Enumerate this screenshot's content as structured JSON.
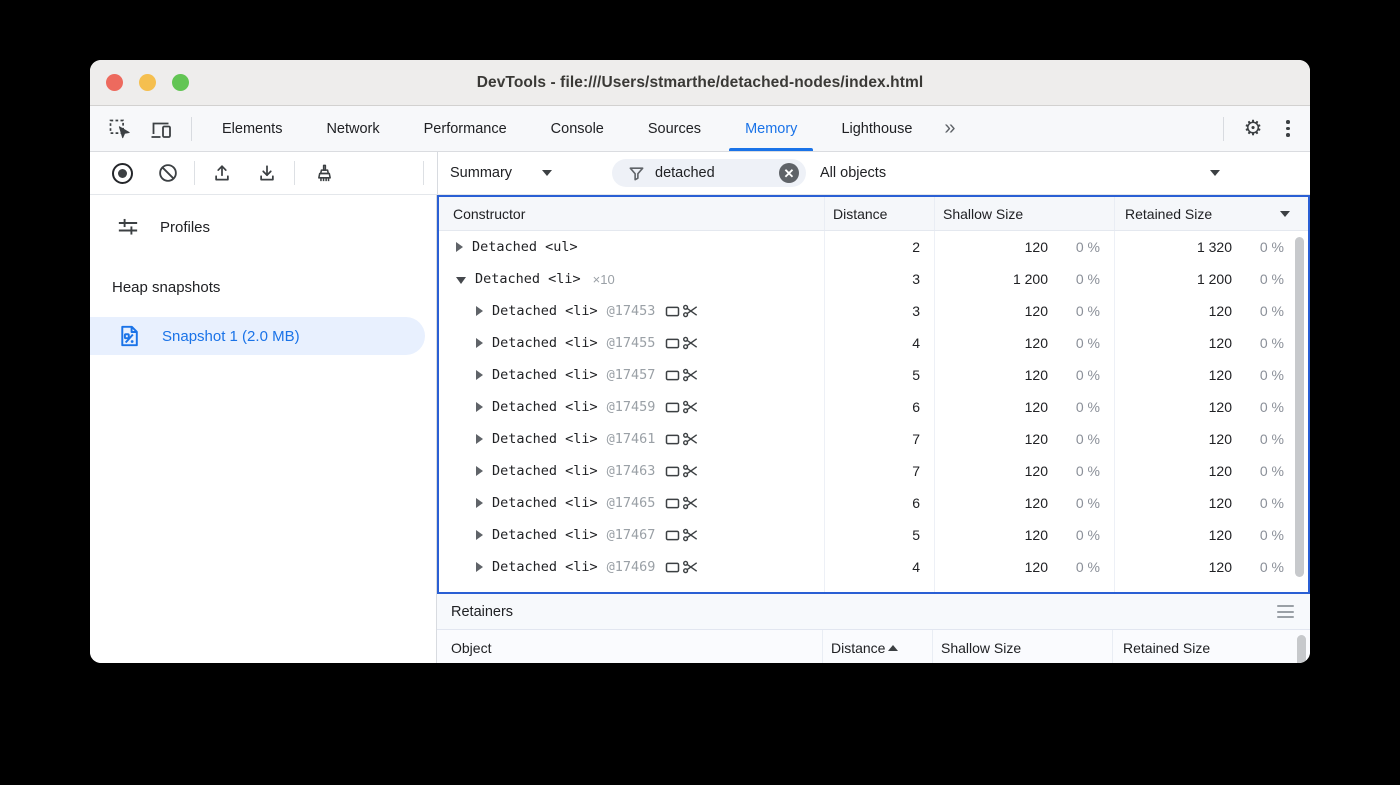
{
  "window": {
    "title": "DevTools - file:///Users/stmarthe/detached-nodes/index.html"
  },
  "tabs": {
    "items": [
      {
        "label": "Elements",
        "active": false
      },
      {
        "label": "Network",
        "active": false
      },
      {
        "label": "Performance",
        "active": false
      },
      {
        "label": "Console",
        "active": false
      },
      {
        "label": "Sources",
        "active": false
      },
      {
        "label": "Memory",
        "active": true
      },
      {
        "label": "Lighthouse",
        "active": false
      }
    ],
    "overflow_label": "»"
  },
  "toolbar": {
    "summary_label": "Summary",
    "filter_value": "detached",
    "clear_label": "✕",
    "object_filter_label": "All objects"
  },
  "sidebar": {
    "profiles_label": "Profiles",
    "heap_heading": "Heap snapshots",
    "snapshot_label": "Snapshot 1 (2.0 MB)"
  },
  "grid": {
    "columns": [
      {
        "label": "Constructor"
      },
      {
        "label": "Distance"
      },
      {
        "label": "Shallow Size"
      },
      {
        "label": "Retained Size",
        "sort": "desc"
      }
    ],
    "rows": [
      {
        "twisty": "collapsed",
        "name": "Detached <ul>",
        "count": "",
        "id": "",
        "child": false,
        "icons": false,
        "distance": "2",
        "shallow": "120",
        "shallow_pct": "0 %",
        "retained": "1 320",
        "retained_pct": "0 %"
      },
      {
        "twisty": "expanded",
        "name": "Detached <li>",
        "count": "×10",
        "id": "",
        "child": false,
        "icons": false,
        "distance": "3",
        "shallow": "1 200",
        "shallow_pct": "0 %",
        "retained": "1 200",
        "retained_pct": "0 %"
      },
      {
        "twisty": "collapsed",
        "name": "Detached <li>",
        "count": "",
        "id": "@17453",
        "child": true,
        "icons": true,
        "distance": "3",
        "shallow": "120",
        "shallow_pct": "0 %",
        "retained": "120",
        "retained_pct": "0 %"
      },
      {
        "twisty": "collapsed",
        "name": "Detached <li>",
        "count": "",
        "id": "@17455",
        "child": true,
        "icons": true,
        "distance": "4",
        "shallow": "120",
        "shallow_pct": "0 %",
        "retained": "120",
        "retained_pct": "0 %"
      },
      {
        "twisty": "collapsed",
        "name": "Detached <li>",
        "count": "",
        "id": "@17457",
        "child": true,
        "icons": true,
        "distance": "5",
        "shallow": "120",
        "shallow_pct": "0 %",
        "retained": "120",
        "retained_pct": "0 %"
      },
      {
        "twisty": "collapsed",
        "name": "Detached <li>",
        "count": "",
        "id": "@17459",
        "child": true,
        "icons": true,
        "distance": "6",
        "shallow": "120",
        "shallow_pct": "0 %",
        "retained": "120",
        "retained_pct": "0 %"
      },
      {
        "twisty": "collapsed",
        "name": "Detached <li>",
        "count": "",
        "id": "@17461",
        "child": true,
        "icons": true,
        "distance": "7",
        "shallow": "120",
        "shallow_pct": "0 %",
        "retained": "120",
        "retained_pct": "0 %"
      },
      {
        "twisty": "collapsed",
        "name": "Detached <li>",
        "count": "",
        "id": "@17463",
        "child": true,
        "icons": true,
        "distance": "7",
        "shallow": "120",
        "shallow_pct": "0 %",
        "retained": "120",
        "retained_pct": "0 %"
      },
      {
        "twisty": "collapsed",
        "name": "Detached <li>",
        "count": "",
        "id": "@17465",
        "child": true,
        "icons": true,
        "distance": "6",
        "shallow": "120",
        "shallow_pct": "0 %",
        "retained": "120",
        "retained_pct": "0 %"
      },
      {
        "twisty": "collapsed",
        "name": "Detached <li>",
        "count": "",
        "id": "@17467",
        "child": true,
        "icons": true,
        "distance": "5",
        "shallow": "120",
        "shallow_pct": "0 %",
        "retained": "120",
        "retained_pct": "0 %"
      },
      {
        "twisty": "collapsed",
        "name": "Detached <li>",
        "count": "",
        "id": "@17469",
        "child": true,
        "icons": true,
        "distance": "4",
        "shallow": "120",
        "shallow_pct": "0 %",
        "retained": "120",
        "retained_pct": "0 %"
      },
      {
        "partial": true,
        "icons": true
      }
    ]
  },
  "retainers": {
    "title": "Retainers",
    "columns": [
      {
        "label": "Object"
      },
      {
        "label": "Distance",
        "sort": "asc"
      },
      {
        "label": "Shallow Size"
      },
      {
        "label": "Retained Size"
      }
    ]
  },
  "colors": {
    "accent_blue": "#1a73e8",
    "grid_focus_border": "#2a5fd4",
    "selection_bg": "#e8f0fe",
    "muted_text": "#9aa0a6",
    "traffic_red": "#ed6a5e",
    "traffic_yellow": "#f5bf4f",
    "traffic_green": "#62c554"
  }
}
